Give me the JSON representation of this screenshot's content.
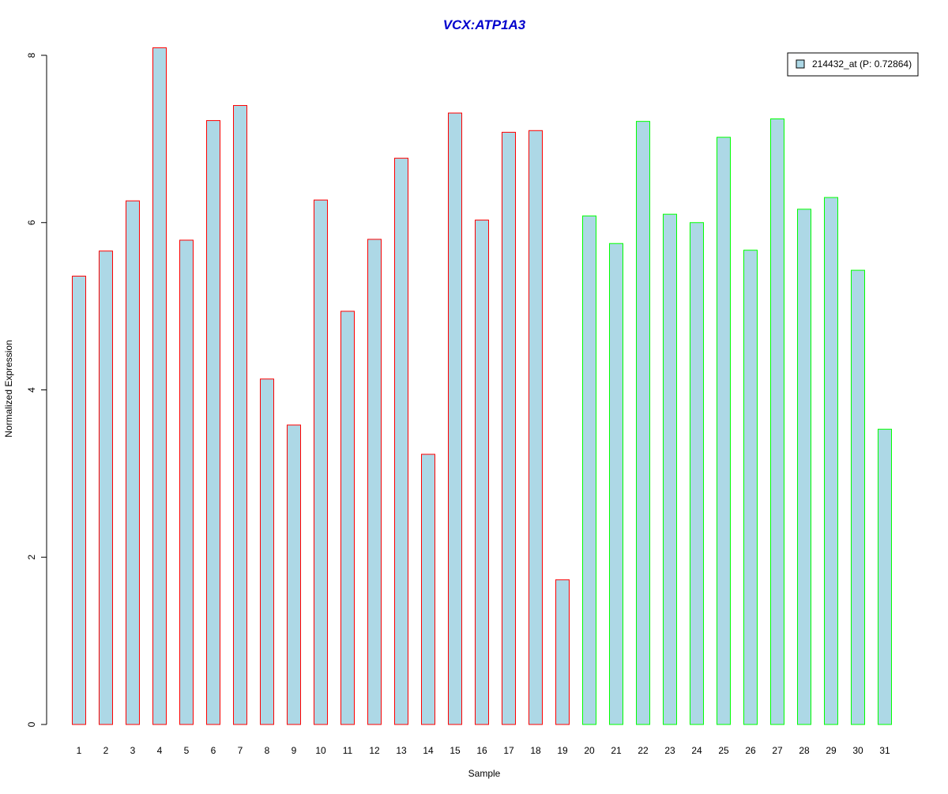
{
  "chart_data": {
    "type": "bar",
    "title": "VCX:ATP1A3",
    "xlabel": "Sample",
    "ylabel": "Normalized Expression",
    "ylim": [
      0,
      8
    ],
    "yticks": [
      "0",
      "2",
      "4",
      "6",
      "8"
    ],
    "categories": [
      "1",
      "2",
      "3",
      "4",
      "5",
      "6",
      "7",
      "8",
      "9",
      "10",
      "11",
      "12",
      "13",
      "14",
      "15",
      "16",
      "17",
      "18",
      "19",
      "20",
      "21",
      "22",
      "23",
      "24",
      "25",
      "26",
      "27",
      "28",
      "29",
      "30",
      "31"
    ],
    "series": [
      {
        "name": "214432_at (P: 0.72864)",
        "values": [
          5.36,
          5.66,
          6.26,
          8.09,
          5.79,
          7.22,
          7.4,
          4.13,
          3.58,
          6.27,
          4.94,
          5.8,
          6.77,
          3.23,
          7.31,
          6.03,
          7.08,
          7.1,
          1.73,
          6.08,
          5.75,
          7.21,
          6.1,
          6.0,
          7.02,
          5.67,
          7.24,
          6.16,
          6.3,
          5.43,
          3.53
        ]
      }
    ],
    "group_border_colors": [
      "#ff0000",
      "#ff0000",
      "#ff0000",
      "#ff0000",
      "#ff0000",
      "#ff0000",
      "#ff0000",
      "#ff0000",
      "#ff0000",
      "#ff0000",
      "#ff0000",
      "#ff0000",
      "#ff0000",
      "#ff0000",
      "#ff0000",
      "#ff0000",
      "#ff0000",
      "#ff0000",
      "#ff0000",
      "#00ff00",
      "#00ff00",
      "#00ff00",
      "#00ff00",
      "#00ff00",
      "#00ff00",
      "#00ff00",
      "#00ff00",
      "#00ff00",
      "#00ff00",
      "#00ff00",
      "#00ff00"
    ],
    "bar_fill_color": "#add8e6",
    "title_color": "#0000cd",
    "legend_position": "top-right",
    "grid": false
  }
}
